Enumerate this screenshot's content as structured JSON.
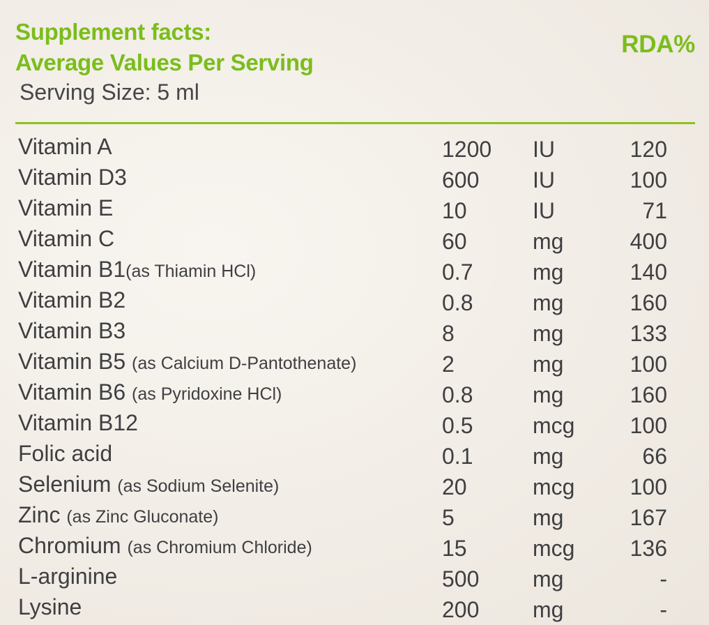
{
  "header": {
    "title_line1": "Supplement facts:",
    "title_line2": "Average Values Per Serving",
    "rda_label": "RDA%",
    "serving_size": "Serving Size: 5 ml"
  },
  "nutrients": [
    {
      "name": "Vitamin A",
      "note": "",
      "amount": "1200",
      "unit": "IU",
      "rda": "120"
    },
    {
      "name": "Vitamin D3",
      "note": "",
      "amount": "600",
      "unit": "IU",
      "rda": "100"
    },
    {
      "name": "Vitamin E",
      "note": "",
      "amount": "10",
      "unit": "IU",
      "rda": "71"
    },
    {
      "name": "Vitamin C",
      "note": "",
      "amount": "60",
      "unit": "mg",
      "rda": "400"
    },
    {
      "name": "Vitamin B1",
      "note": "(as Thiamin HCl)",
      "amount": "0.7",
      "unit": "mg",
      "rda": "140"
    },
    {
      "name": "Vitamin B2",
      "note": "",
      "amount": "0.8",
      "unit": "mg",
      "rda": "160"
    },
    {
      "name": "Vitamin B3",
      "note": "",
      "amount": "8",
      "unit": "mg",
      "rda": "133"
    },
    {
      "name": "Vitamin B5",
      "note": "(as Calcium D-Pantothenate)",
      "amount": "2",
      "unit": "mg",
      "rda": "100"
    },
    {
      "name": "Vitamin B6",
      "note": "(as Pyridoxine HCl)",
      "amount": "0.8",
      "unit": "mg",
      "rda": "160"
    },
    {
      "name": "Vitamin B12",
      "note": "",
      "amount": "0.5",
      "unit": "mcg",
      "rda": "100"
    },
    {
      "name": "Folic acid",
      "note": "",
      "amount": "0.1",
      "unit": "mg",
      "rda": "66"
    },
    {
      "name": "Selenium",
      "note": "(as Sodium Selenite)",
      "amount": "20",
      "unit": "mcg",
      "rda": "100"
    },
    {
      "name": "Zinc",
      "note": "(as Zinc Gluconate)",
      "amount": "5",
      "unit": "mg",
      "rda": "167"
    },
    {
      "name": "Chromium",
      "note": "(as Chromium Chloride)",
      "amount": "15",
      "unit": "mcg",
      "rda": "136"
    },
    {
      "name": "L-arginine",
      "note": "",
      "amount": "500",
      "unit": "mg",
      "rda": "-"
    },
    {
      "name": "Lysine",
      "note": "",
      "amount": "200",
      "unit": "mg",
      "rda": "-"
    }
  ],
  "colors": {
    "accent_green": "#7bbd1c",
    "text": "#3f3f42",
    "background": "#f4f0ea"
  }
}
